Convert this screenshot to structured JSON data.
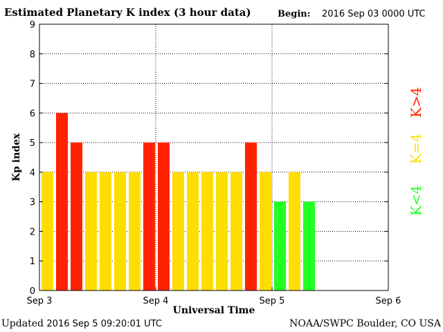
{
  "header": {
    "title": "Estimated Planetary K index (3 hour data)",
    "begin_label": "Begin:",
    "begin_value": "2016 Sep 03 0000 UTC"
  },
  "footer": {
    "updated_label": "Updated",
    "updated_value": "2016 Sep  5 09:20:01 UTC",
    "organization": "NOAA/SWPC Boulder, CO USA"
  },
  "colors": {
    "below4": "#22ff22",
    "equal4": "#ffdd00",
    "above4": "#ff2200"
  },
  "chart_data": {
    "type": "bar",
    "title": "Estimated Planetary K index (3 hour data)",
    "xlabel": "Universal Time",
    "ylabel": "Kp index",
    "ylim": [
      0,
      9
    ],
    "yticks": [
      "0",
      "1",
      "2",
      "3",
      "4",
      "5",
      "6",
      "7",
      "8",
      "9"
    ],
    "xticks": [
      "Sep 3",
      "Sep 4",
      "Sep 5",
      "Sep 6"
    ],
    "interval_hours": 3,
    "slots": 24,
    "values": [
      4,
      6,
      5,
      4,
      4,
      4,
      4,
      5,
      5,
      4,
      4,
      4,
      4,
      4,
      5,
      4,
      3,
      4,
      3
    ],
    "grid": true,
    "legend": [
      {
        "label": "K<4",
        "color": "#22ff22"
      },
      {
        "label": "K=4",
        "color": "#ffdd00"
      },
      {
        "label": "K>4",
        "color": "#ff2200"
      }
    ],
    "legend_position": "right-vertical"
  }
}
